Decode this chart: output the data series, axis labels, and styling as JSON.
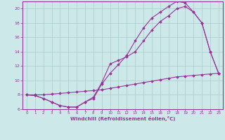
{
  "xlabel": "Windchill (Refroidissement éolien,°C)",
  "bg_color": "#cce8e8",
  "grid_color": "#aacccc",
  "line_color": "#993399",
  "xlim": [
    -0.5,
    23.5
  ],
  "ylim": [
    6,
    21
  ],
  "yticks": [
    6,
    8,
    10,
    12,
    14,
    16,
    18,
    20
  ],
  "xticks": [
    0,
    1,
    2,
    3,
    4,
    5,
    6,
    7,
    8,
    9,
    10,
    11,
    12,
    13,
    14,
    15,
    16,
    17,
    18,
    19,
    20,
    21,
    22,
    23
  ],
  "line1_x": [
    0,
    1,
    2,
    3,
    4,
    5,
    6,
    7,
    8,
    9,
    10,
    11,
    12,
    13,
    14,
    15,
    16,
    17,
    18,
    19,
    20,
    21,
    22,
    23
  ],
  "line1_y": [
    8.0,
    7.9,
    7.5,
    7.0,
    6.5,
    6.3,
    6.3,
    7.0,
    7.7,
    9.7,
    12.3,
    12.8,
    13.3,
    14.0,
    15.5,
    17.0,
    18.2,
    19.0,
    20.0,
    20.3,
    19.5,
    18.0,
    14.0,
    11.0
  ],
  "line2_x": [
    0,
    1,
    2,
    3,
    4,
    5,
    6,
    7,
    8,
    9,
    10,
    11,
    12,
    13,
    14,
    15,
    16,
    17,
    18,
    19,
    20,
    21,
    22,
    23
  ],
  "line2_y": [
    8.0,
    7.9,
    7.5,
    7.0,
    6.5,
    6.3,
    6.3,
    7.0,
    7.5,
    9.5,
    11.0,
    12.2,
    13.5,
    15.5,
    17.3,
    18.7,
    19.5,
    20.3,
    21.0,
    20.8,
    19.5,
    18.0,
    14.0,
    11.0
  ],
  "line3_x": [
    0,
    1,
    2,
    3,
    4,
    5,
    6,
    7,
    8,
    9,
    10,
    11,
    12,
    13,
    14,
    15,
    16,
    17,
    18,
    19,
    20,
    21,
    22,
    23
  ],
  "line3_y": [
    8.0,
    8.0,
    8.0,
    8.1,
    8.2,
    8.3,
    8.4,
    8.5,
    8.6,
    8.7,
    8.9,
    9.1,
    9.3,
    9.5,
    9.7,
    9.9,
    10.1,
    10.3,
    10.5,
    10.6,
    10.7,
    10.8,
    10.9,
    11.0
  ]
}
